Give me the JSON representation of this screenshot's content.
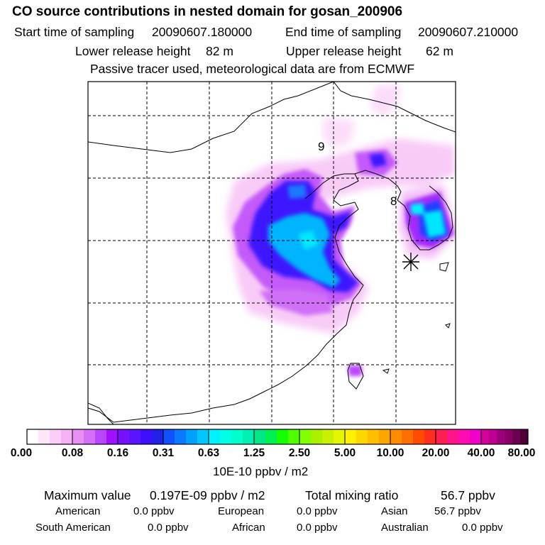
{
  "header": {
    "title": "CO  source contributions in nested domain for gosan_200906",
    "start_label": "Start time of sampling",
    "start_value": "20090607.180000",
    "end_label": "End time of sampling",
    "end_value": "20090607.210000",
    "lower_label": "Lower release height",
    "lower_value": "82 m",
    "upper_label": "Upper release height",
    "upper_value": "62 m",
    "note": "Passive tracer used, meteorological data are from ECMWF"
  },
  "map": {
    "day_markers": [
      "9",
      "8"
    ],
    "colors": {
      "frame": "#000000",
      "land": "#ffffff"
    }
  },
  "colorbar": {
    "labels": [
      "0.00",
      "0.08",
      "0.16",
      "0.31",
      "0.63",
      "1.25",
      "2.50",
      "5.00",
      "10.00",
      "20.00",
      "40.00",
      "80.00"
    ],
    "colors": [
      [
        "#ffffff",
        "#fde6fb",
        "#fbcdf8",
        "#f7b2f6"
      ],
      [
        "#ea8ff5",
        "#d56ff8",
        "#bb45fc",
        "#a010ff"
      ],
      [
        "#7810ff",
        "#5a14ff",
        "#3c10ff",
        "#2020e8"
      ],
      [
        "#1050ff",
        "#0a78ff",
        "#00a0ff",
        "#00c8ff"
      ],
      [
        "#00f2ff",
        "#00ffe8",
        "#00ffcc",
        "#00f0b4"
      ],
      [
        "#00e687",
        "#00f050",
        "#14ff00",
        "#50ff00"
      ],
      [
        "#82ff00",
        "#aaf000",
        "#c8f000",
        "#e6f500"
      ],
      [
        "#fff000",
        "#ffd700",
        "#ffbe00",
        "#ffa500"
      ],
      [
        "#ff8c00",
        "#ff6e00",
        "#ff4b00",
        "#ff2d1e"
      ],
      [
        "#ff1e50",
        "#ff148c",
        "#ff0ab4",
        "#f000c8"
      ],
      [
        "#d2009b",
        "#bd0092",
        "#a0007c",
        "#8a006a",
        "#6e0050",
        "#500036"
      ]
    ],
    "unit": "10E-10 ppbv / m2"
  },
  "summary": {
    "max_label": "Maximum value",
    "max_value": "0.197E-09 ppbv / m2",
    "total_label": "Total mixing ratio",
    "total_value": "56.7 ppbv",
    "regions": [
      {
        "name": "American",
        "value": "0.0 ppbv"
      },
      {
        "name": "European",
        "value": "0.0 ppbv"
      },
      {
        "name": "Asian",
        "value": "56.7 ppbv"
      },
      {
        "name": "South American",
        "value": "0.0 ppbv"
      },
      {
        "name": "African",
        "value": "0.0 ppbv"
      },
      {
        "name": "Australian",
        "value": "0.0 ppbv"
      }
    ]
  }
}
